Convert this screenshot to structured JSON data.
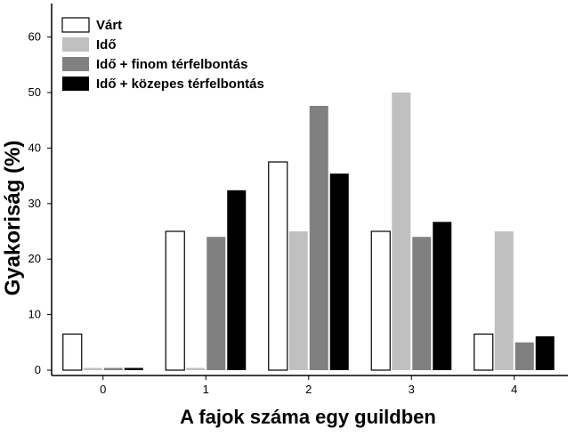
{
  "chart_data": {
    "type": "bar",
    "categories": [
      "0",
      "1",
      "2",
      "3",
      "4"
    ],
    "series": [
      {
        "name": "Várt",
        "values": [
          6.5,
          25,
          37.5,
          25,
          6.5
        ],
        "color": "#ffffff",
        "stroke": "#000000"
      },
      {
        "name": "Idő",
        "values": [
          0.4,
          0.4,
          25,
          50,
          25
        ],
        "color": "#c0c0c0"
      },
      {
        "name": "Idő + finom térfelbontás",
        "values": [
          0.4,
          24,
          47.6,
          24,
          5
        ],
        "color": "#808080"
      },
      {
        "name": "Idő + közepes térfelbontás",
        "values": [
          0.4,
          32.4,
          35.4,
          26.7,
          6.1
        ],
        "color": "#000000"
      }
    ],
    "xlabel": "A fajok száma egy guildben",
    "ylabel": "Gyakoriság (%)",
    "ylim": [
      0,
      65
    ],
    "yticks": [
      0,
      10,
      20,
      30,
      40,
      50,
      60
    ],
    "legend_position": "top-left",
    "grid": false
  }
}
